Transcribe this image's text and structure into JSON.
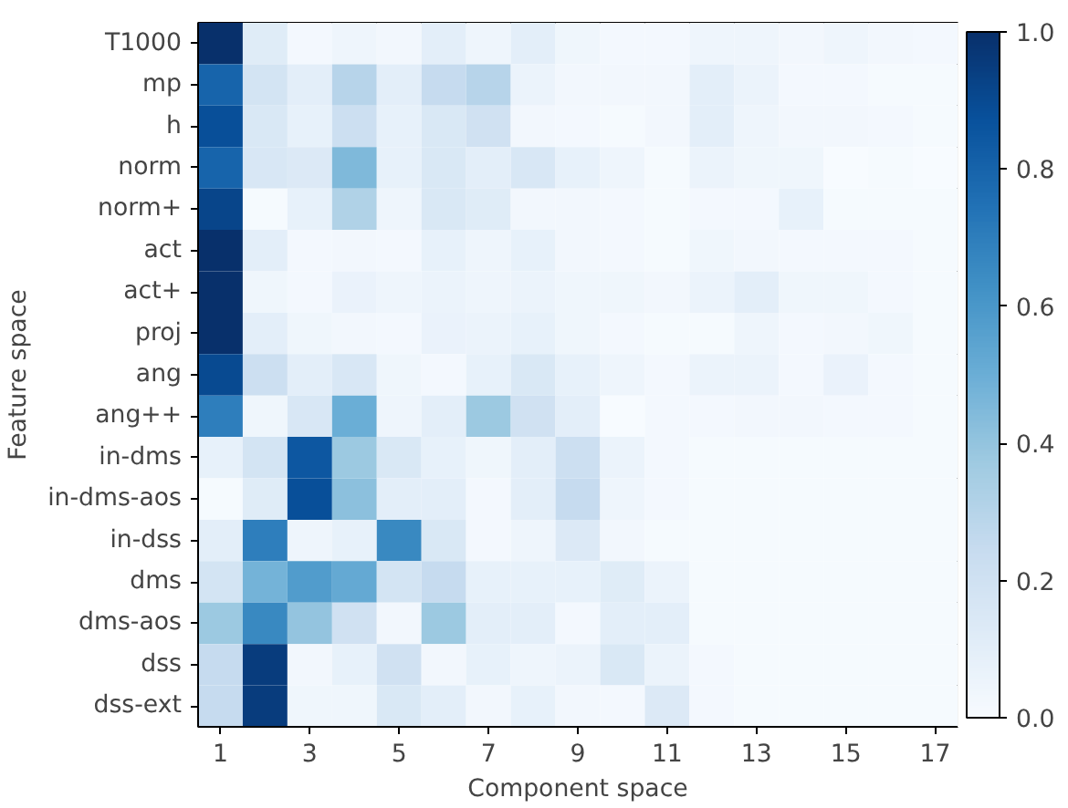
{
  "chart_data": {
    "type": "heatmap",
    "xlabel": "Component space",
    "ylabel": "Feature space",
    "x": [
      1,
      2,
      3,
      4,
      5,
      6,
      7,
      8,
      9,
      10,
      11,
      12,
      13,
      14,
      15,
      16,
      17
    ],
    "xlim": [
      0.5,
      17.5
    ],
    "xticks": [
      1,
      3,
      5,
      7,
      9,
      11,
      13,
      15,
      17
    ],
    "y_categories": [
      "T1000",
      "mp",
      "h",
      "norm",
      "norm+",
      "act",
      "act+",
      "proj",
      "ang",
      "ang++",
      "in-dms",
      "in-dms-aos",
      "in-dss",
      "dms",
      "dms-aos",
      "dss",
      "dss-ext"
    ],
    "cells": [
      [
        1.0,
        0.12,
        0.02,
        0.05,
        0.03,
        0.1,
        0.05,
        0.1,
        0.04,
        0.02,
        0.02,
        0.05,
        0.05,
        0.03,
        0.05,
        0.03,
        0.02
      ],
      [
        0.8,
        0.18,
        0.1,
        0.3,
        0.1,
        0.25,
        0.3,
        0.06,
        0.03,
        0.03,
        0.03,
        0.1,
        0.06,
        0.02,
        0.02,
        0.01,
        0.01
      ],
      [
        0.88,
        0.15,
        0.08,
        0.22,
        0.08,
        0.15,
        0.2,
        0.03,
        0.02,
        0.01,
        0.03,
        0.1,
        0.05,
        0.03,
        0.03,
        0.02,
        0.01
      ],
      [
        0.8,
        0.16,
        0.14,
        0.45,
        0.08,
        0.15,
        0.1,
        0.16,
        0.08,
        0.05,
        0.01,
        0.06,
        0.04,
        0.04,
        0.0,
        0.01,
        0.0
      ],
      [
        0.92,
        0.01,
        0.08,
        0.32,
        0.05,
        0.15,
        0.12,
        0.03,
        0.03,
        0.02,
        0.01,
        0.02,
        0.02,
        0.08,
        0.01,
        0.01,
        0.01
      ],
      [
        1.0,
        0.1,
        0.02,
        0.03,
        0.02,
        0.08,
        0.05,
        0.08,
        0.03,
        0.02,
        0.01,
        0.04,
        0.03,
        0.02,
        0.02,
        0.02,
        0.01
      ],
      [
        1.0,
        0.04,
        0.02,
        0.07,
        0.05,
        0.06,
        0.05,
        0.06,
        0.04,
        0.04,
        0.03,
        0.06,
        0.1,
        0.04,
        0.04,
        0.02,
        0.01
      ],
      [
        1.0,
        0.1,
        0.04,
        0.03,
        0.02,
        0.07,
        0.06,
        0.08,
        0.04,
        0.02,
        0.01,
        0.01,
        0.05,
        0.02,
        0.03,
        0.04,
        0.01
      ],
      [
        0.9,
        0.22,
        0.1,
        0.16,
        0.04,
        0.02,
        0.08,
        0.15,
        0.08,
        0.05,
        0.02,
        0.06,
        0.06,
        0.02,
        0.07,
        0.02,
        0.01
      ],
      [
        0.7,
        0.04,
        0.16,
        0.5,
        0.05,
        0.1,
        0.38,
        0.2,
        0.1,
        0.0,
        0.02,
        0.02,
        0.03,
        0.03,
        0.02,
        0.02,
        0.01
      ],
      [
        0.08,
        0.18,
        0.85,
        0.38,
        0.15,
        0.08,
        0.04,
        0.1,
        0.22,
        0.06,
        0.02,
        0.01,
        0.01,
        0.01,
        0.01,
        0.01,
        0.01
      ],
      [
        0.01,
        0.12,
        0.88,
        0.42,
        0.1,
        0.1,
        0.02,
        0.1,
        0.25,
        0.05,
        0.02,
        0.01,
        0.01,
        0.01,
        0.01,
        0.01,
        0.01
      ],
      [
        0.1,
        0.7,
        0.05,
        0.08,
        0.66,
        0.15,
        0.02,
        0.05,
        0.14,
        0.03,
        0.01,
        0.01,
        0.01,
        0.01,
        0.01,
        0.01,
        0.01
      ],
      [
        0.18,
        0.48,
        0.58,
        0.52,
        0.18,
        0.25,
        0.08,
        0.08,
        0.08,
        0.12,
        0.06,
        0.01,
        0.01,
        0.01,
        0.01,
        0.01,
        0.01
      ],
      [
        0.38,
        0.66,
        0.4,
        0.2,
        0.03,
        0.38,
        0.1,
        0.1,
        0.02,
        0.1,
        0.1,
        0.01,
        0.01,
        0.01,
        0.01,
        0.01,
        0.01
      ],
      [
        0.25,
        0.95,
        0.03,
        0.08,
        0.2,
        0.03,
        0.08,
        0.05,
        0.06,
        0.15,
        0.06,
        0.02,
        0.01,
        0.01,
        0.01,
        0.01,
        0.01
      ],
      [
        0.25,
        0.95,
        0.04,
        0.04,
        0.15,
        0.1,
        0.03,
        0.08,
        0.03,
        0.02,
        0.14,
        0.02,
        0.01,
        0.01,
        0.01,
        0.01,
        0.01
      ]
    ],
    "clim": [
      0,
      1
    ],
    "cticks": [
      {
        "value": 0,
        "label": "0.0"
      },
      {
        "value": 0.2,
        "label": "0.2"
      },
      {
        "value": 0.4,
        "label": "0.4"
      },
      {
        "value": 0.6,
        "label": "0.6"
      },
      {
        "value": 0.8,
        "label": "0.8"
      },
      {
        "value": 1,
        "label": "1.0"
      }
    ]
  }
}
